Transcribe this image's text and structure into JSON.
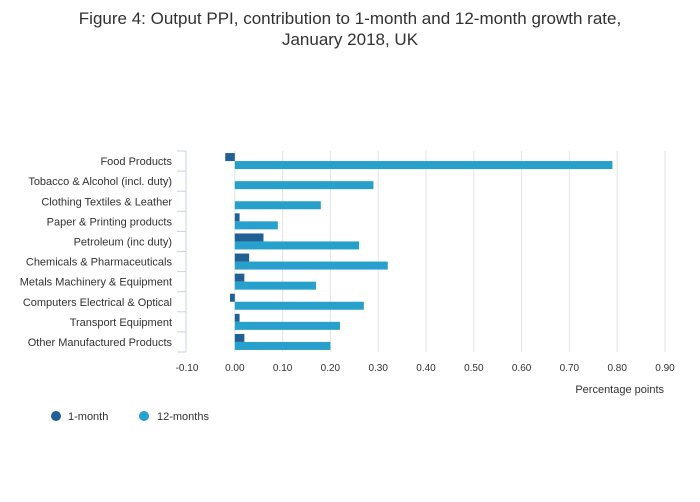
{
  "chart_data": {
    "type": "bar",
    "orientation": "horizontal",
    "title_lines": [
      "Figure 4: Output PPI, contribution to 1-month and 12-month growth rate,",
      "January 2018, UK"
    ],
    "categories": [
      "Food Products",
      "Tobacco & Alcohol (incl. duty)",
      "Clothing Textiles & Leather",
      "Paper & Printing products",
      "Petroleum (inc duty)",
      "Chemicals & Pharmaceuticals",
      "Metals Machinery & Equipment",
      "Computers Electrical & Optical",
      "Transport Equipment",
      "Other Manufactured Products"
    ],
    "series": [
      {
        "name": "1-month",
        "color": "#206095",
        "values": [
          -0.02,
          0.0,
          0.0,
          0.01,
          0.06,
          0.03,
          0.02,
          -0.01,
          0.01,
          0.02
        ]
      },
      {
        "name": "12-months",
        "color": "#27a0cc",
        "values": [
          0.79,
          0.29,
          0.18,
          0.09,
          0.26,
          0.32,
          0.17,
          0.27,
          0.22,
          0.2
        ]
      }
    ],
    "xlabel": "Percentage points",
    "xlim": [
      -0.1,
      0.9
    ],
    "xticks": [
      -0.1,
      0.0,
      0.1,
      0.2,
      0.3,
      0.4,
      0.5,
      0.6,
      0.7,
      0.8,
      0.9
    ],
    "xtick_labels": [
      "-0.10",
      "0.00",
      "0.10",
      "0.20",
      "0.30",
      "0.40",
      "0.50",
      "0.60",
      "0.70",
      "0.80",
      "0.90"
    ],
    "grid": true,
    "legend": "bottom-left"
  }
}
